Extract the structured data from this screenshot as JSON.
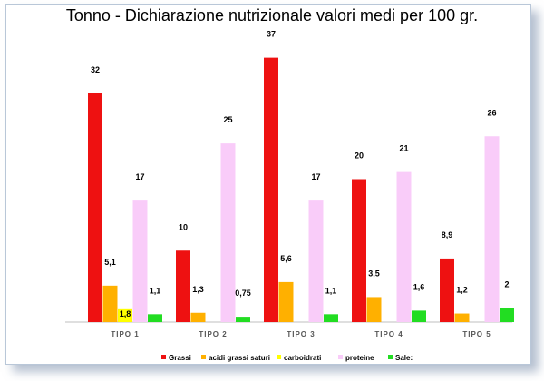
{
  "chart_data": {
    "type": "bar",
    "title": "Tonno - Dichiarazione nutrizionale valori medi per 100 gr.",
    "xlabel": "",
    "ylabel": "",
    "ylim": [
      0,
      40
    ],
    "grid": false,
    "legend_position": "bottom",
    "categories": [
      "TIPO 1",
      "TIPO 2",
      "TIPO 3",
      "TIPO 4",
      "TIPO 5"
    ],
    "series": [
      {
        "name": "Grassi",
        "color": "#ee1111",
        "values": [
          32,
          10,
          37,
          20,
          8.9
        ],
        "labels": [
          "32",
          "10",
          "37",
          "20",
          "8,9"
        ]
      },
      {
        "name": "acidi grassi saturi",
        "color": "#ffb000",
        "values": [
          5.1,
          1.3,
          5.6,
          3.5,
          1.2
        ],
        "labels": [
          "5,1",
          "1,3",
          "5,6",
          "3,5",
          "1,2"
        ]
      },
      {
        "name": "carboidrati",
        "color": "#ffff00",
        "values": [
          1.8,
          null,
          null,
          null,
          null
        ],
        "labels": [
          "1,8",
          "",
          "",
          "",
          ""
        ]
      },
      {
        "name": "proteine",
        "color": "#f9ccf9",
        "values": [
          17,
          25,
          17,
          21,
          26
        ],
        "labels": [
          "17",
          "25",
          "17",
          "21",
          "26"
        ]
      },
      {
        "name": "Sale:",
        "color": "#22dd22",
        "values": [
          1.1,
          0.75,
          1.1,
          1.6,
          2
        ],
        "labels": [
          "1,1",
          "0,75",
          "1,1",
          "1,6",
          "2"
        ]
      }
    ]
  }
}
